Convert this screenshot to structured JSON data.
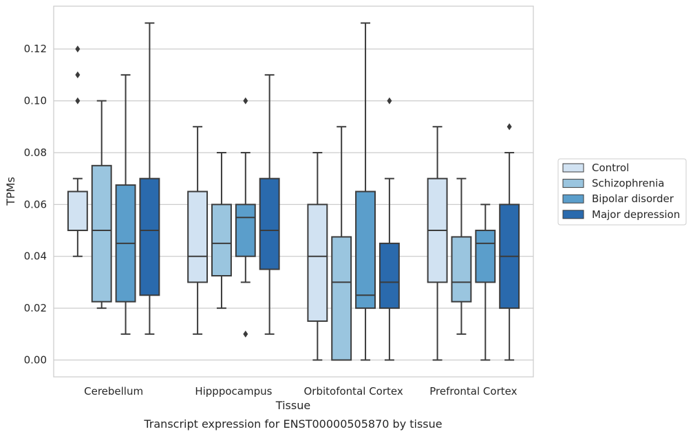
{
  "caption": "Transcript expression for ENST00000505870 by tissue",
  "chart_data": {
    "type": "box",
    "xlabel": "Tissue",
    "ylabel": "TPMs",
    "ylim": [
      -0.0065,
      0.1365
    ],
    "yticks": [
      0.0,
      0.02,
      0.04,
      0.06,
      0.08,
      0.1,
      0.12
    ],
    "ytick_labels": [
      "0.00",
      "0.02",
      "0.04",
      "0.06",
      "0.08",
      "0.10",
      "0.12"
    ],
    "grid": "horizontal",
    "legend_position": "right",
    "categories": [
      "Cerebellum",
      "Hipppocampus",
      "Orbitofontal Cortex",
      "Prefrontal Cortex"
    ],
    "series": [
      {
        "name": "Control",
        "color": "#d1e2f2",
        "boxes": [
          {
            "whislo": 0.04,
            "q1": 0.05,
            "med": 0.05,
            "q3": 0.065,
            "whishi": 0.07,
            "fliers": [
              0.1,
              0.11,
              0.12
            ]
          },
          {
            "whislo": 0.01,
            "q1": 0.03,
            "med": 0.04,
            "q3": 0.065,
            "whishi": 0.09,
            "fliers": []
          },
          {
            "whislo": 0.0,
            "q1": 0.015,
            "med": 0.04,
            "q3": 0.06,
            "whishi": 0.08,
            "fliers": []
          },
          {
            "whislo": 0.0,
            "q1": 0.03,
            "med": 0.05,
            "q3": 0.07,
            "whishi": 0.09,
            "fliers": []
          }
        ]
      },
      {
        "name": "Schizophrenia",
        "color": "#9ac5df",
        "boxes": [
          {
            "whislo": 0.02,
            "q1": 0.0225,
            "med": 0.05,
            "q3": 0.075,
            "whishi": 0.1,
            "fliers": []
          },
          {
            "whislo": 0.02,
            "q1": 0.0325,
            "med": 0.045,
            "q3": 0.06,
            "whishi": 0.08,
            "fliers": []
          },
          {
            "whislo": 0.0,
            "q1": 0.0,
            "med": 0.03,
            "q3": 0.0475,
            "whishi": 0.09,
            "fliers": []
          },
          {
            "whislo": 0.01,
            "q1": 0.0225,
            "med": 0.03,
            "q3": 0.0475,
            "whishi": 0.07,
            "fliers": []
          }
        ]
      },
      {
        "name": "Bipolar disorder",
        "color": "#5b9ecb",
        "boxes": [
          {
            "whislo": 0.01,
            "q1": 0.0225,
            "med": 0.045,
            "q3": 0.0675,
            "whishi": 0.11,
            "fliers": []
          },
          {
            "whislo": 0.03,
            "q1": 0.04,
            "med": 0.055,
            "q3": 0.06,
            "whishi": 0.08,
            "fliers": [
              0.1,
              0.01
            ]
          },
          {
            "whislo": 0.0,
            "q1": 0.02,
            "med": 0.025,
            "q3": 0.065,
            "whishi": 0.13,
            "fliers": []
          },
          {
            "whislo": 0.0,
            "q1": 0.03,
            "med": 0.045,
            "q3": 0.05,
            "whishi": 0.06,
            "fliers": []
          }
        ]
      },
      {
        "name": "Major depression",
        "color": "#2a6aad",
        "boxes": [
          {
            "whislo": 0.01,
            "q1": 0.025,
            "med": 0.05,
            "q3": 0.07,
            "whishi": 0.13,
            "fliers": []
          },
          {
            "whislo": 0.01,
            "q1": 0.035,
            "med": 0.05,
            "q3": 0.07,
            "whishi": 0.11,
            "fliers": []
          },
          {
            "whislo": 0.0,
            "q1": 0.02,
            "med": 0.03,
            "q3": 0.045,
            "whishi": 0.07,
            "fliers": [
              0.1
            ]
          },
          {
            "whislo": 0.0,
            "q1": 0.02,
            "med": 0.04,
            "q3": 0.06,
            "whishi": 0.08,
            "fliers": [
              0.09
            ]
          }
        ]
      }
    ]
  }
}
